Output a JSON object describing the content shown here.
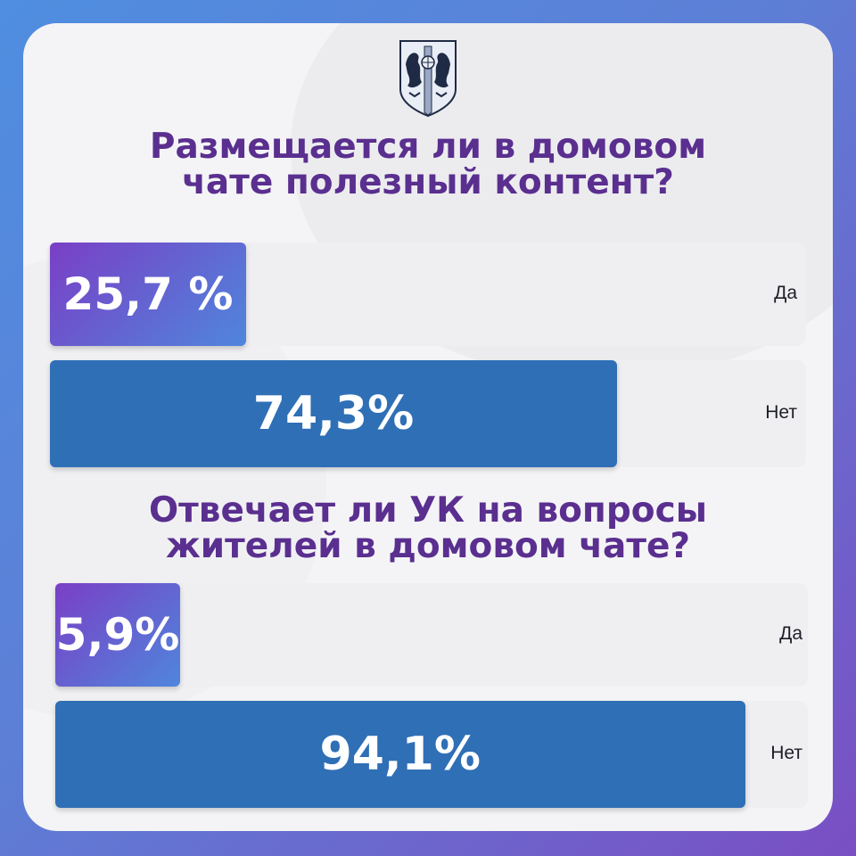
{
  "colors": {
    "frame_start": "#4f8ee0",
    "frame_end": "#7a4fc4",
    "card_bg": "#f4f4f6",
    "question_text": "#5a2f8f",
    "yes_bar_start": "#7a3fc6",
    "yes_bar_end": "#4f86dc",
    "no_bar": "#2f6fb6",
    "track": "#efeff2",
    "label_text": "#1e1e28"
  },
  "emblem": {
    "icon": "coat-of-arms-icon"
  },
  "chart_data": [
    {
      "type": "bar",
      "orientation": "horizontal",
      "title_lines": [
        "Размещается ли в домовом",
        "чате полезный контент?"
      ],
      "categories": [
        "Да",
        "Нет"
      ],
      "values": [
        25.7,
        74.3
      ],
      "value_labels": [
        "25,7 %",
        "74,3%"
      ],
      "xlim": [
        0,
        100
      ]
    },
    {
      "type": "bar",
      "orientation": "horizontal",
      "title_lines": [
        "Отвечает ли УК на вопросы",
        "жителей в домовом чате?"
      ],
      "categories": [
        "Да",
        "Нет"
      ],
      "values": [
        5.9,
        94.1
      ],
      "value_labels": [
        "5,9%",
        "94,1%"
      ],
      "xlim": [
        0,
        100
      ]
    }
  ]
}
